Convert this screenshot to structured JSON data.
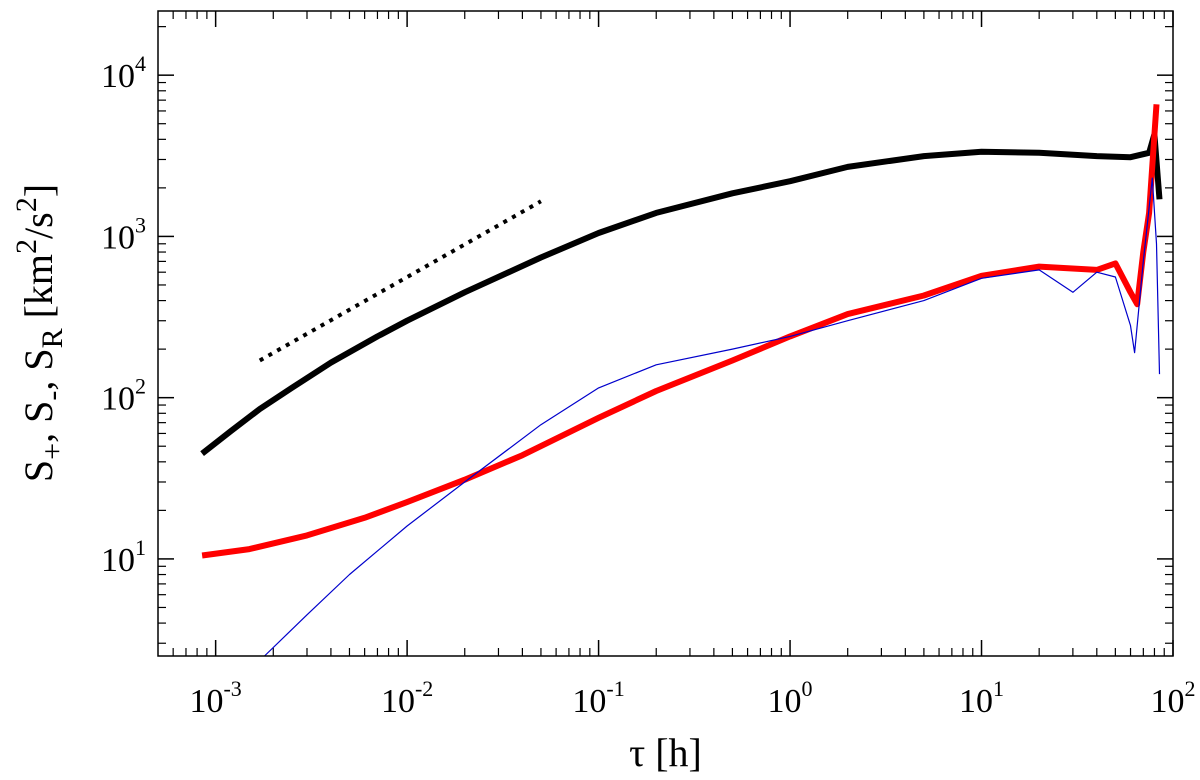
{
  "chart_data": {
    "type": "line",
    "title": "",
    "xscale": "log",
    "yscale": "log",
    "xlim": [
      0.0005,
      100
    ],
    "ylim": [
      2.5,
      25000
    ],
    "xlabel": {
      "main": "τ [h]"
    },
    "ylabel": {
      "parts": [
        "S",
        "+",
        ", S",
        "-",
        ", S",
        "R",
        " [km",
        "2",
        "/s",
        "2",
        "]"
      ]
    },
    "x_ticks": [
      {
        "base": "10",
        "exp": "-3",
        "value": 0.001
      },
      {
        "base": "10",
        "exp": "-2",
        "value": 0.01
      },
      {
        "base": "10",
        "exp": "-1",
        "value": 0.1
      },
      {
        "base": "10",
        "exp": "0",
        "value": 1
      },
      {
        "base": "10",
        "exp": "1",
        "value": 10
      },
      {
        "base": "10",
        "exp": "2",
        "value": 100
      }
    ],
    "y_ticks": [
      {
        "base": "10",
        "exp": "1",
        "value": 10
      },
      {
        "base": "10",
        "exp": "2",
        "value": 100
      },
      {
        "base": "10",
        "exp": "3",
        "value": 1000
      },
      {
        "base": "10",
        "exp": "4",
        "value": 10000
      }
    ],
    "series": [
      {
        "name": "S+",
        "color": "#000000",
        "style": "solid-thick",
        "x": [
          0.00085,
          0.0012,
          0.0017,
          0.0025,
          0.004,
          0.007,
          0.01,
          0.02,
          0.05,
          0.1,
          0.2,
          0.5,
          1,
          2,
          5,
          10,
          20,
          40,
          60,
          75,
          80,
          85
        ],
        "y": [
          45,
          62,
          85,
          115,
          165,
          240,
          300,
          450,
          740,
          1050,
          1400,
          1850,
          2200,
          2700,
          3150,
          3350,
          3300,
          3150,
          3100,
          3300,
          4300,
          1700
        ]
      },
      {
        "name": "S-",
        "color": "#ff0000",
        "style": "solid-thick",
        "x": [
          0.00085,
          0.0015,
          0.003,
          0.006,
          0.01,
          0.02,
          0.04,
          0.1,
          0.2,
          0.5,
          1,
          2,
          5,
          10,
          20,
          40,
          50,
          60,
          65,
          70,
          75,
          82
        ],
        "y": [
          10.5,
          11.5,
          14,
          18,
          22.5,
          31,
          44,
          75,
          110,
          170,
          240,
          330,
          430,
          570,
          650,
          620,
          680,
          450,
          380,
          800,
          1400,
          6600
        ]
      },
      {
        "name": "SR",
        "color": "#0000cc",
        "style": "solid-thin",
        "x": [
          0.0018,
          0.003,
          0.005,
          0.01,
          0.02,
          0.05,
          0.1,
          0.2,
          0.5,
          1,
          2,
          5,
          10,
          20,
          30,
          40,
          50,
          60,
          63,
          70,
          78,
          82,
          85
        ],
        "y": [
          2.5,
          4.5,
          8,
          16,
          30,
          68,
          115,
          160,
          200,
          240,
          300,
          400,
          550,
          620,
          450,
          600,
          560,
          280,
          190,
          700,
          2300,
          900,
          140
        ]
      },
      {
        "name": "reference slope",
        "color": "#000000",
        "style": "dotted",
        "x": [
          0.0017,
          0.05
        ],
        "y": [
          170,
          1650
        ]
      }
    ]
  }
}
